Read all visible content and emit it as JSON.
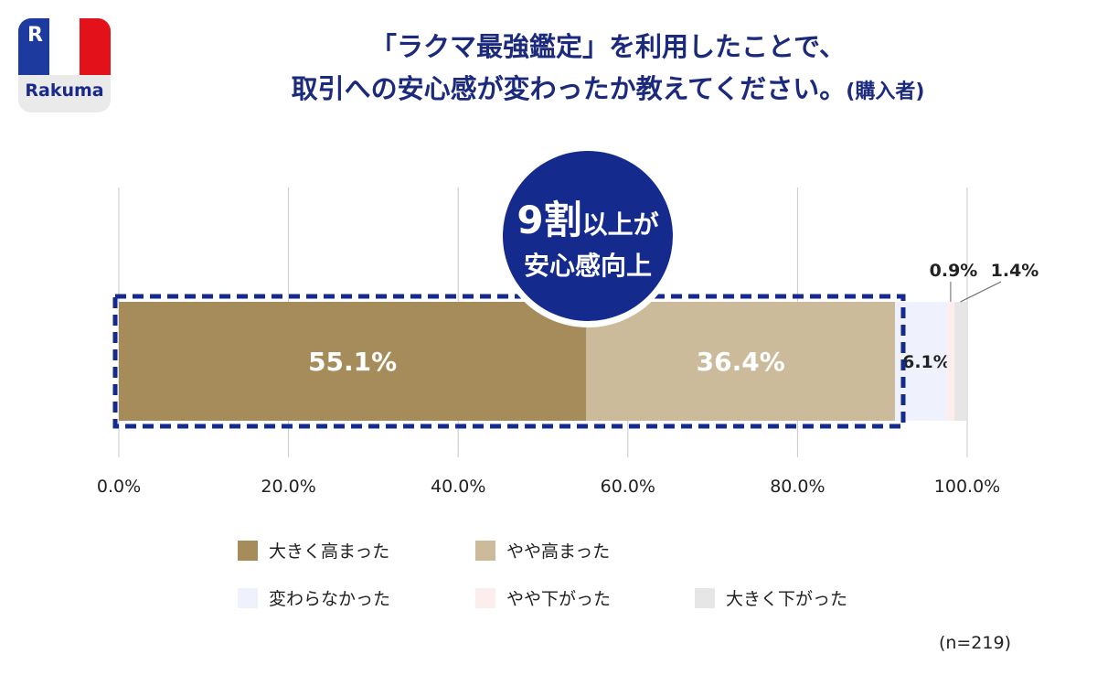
{
  "logo": {
    "text": "Rakuma",
    "colors": [
      "#1d3a9e",
      "#ffffff",
      "#e3121a"
    ]
  },
  "title": {
    "line1": "「ラクマ最強鑑定」を利用したことで、",
    "line2": "取引への安心感が変わったか教えてください。",
    "suffix": "(購入者)"
  },
  "badge": {
    "line1_big": "9割",
    "line1_small": "以上が",
    "line2": "安心感向上",
    "color": "#142a8c"
  },
  "chart_data": {
    "type": "bar",
    "orientation": "horizontal-stacked-100",
    "categories": [
      "大きく高まった",
      "やや高まった",
      "変わらなかった",
      "やや下がった",
      "大きく下がった"
    ],
    "values": [
      55.1,
      36.4,
      6.1,
      0.9,
      1.4
    ],
    "labels": [
      "55.1%",
      "36.4%",
      "6.1%",
      "0.9%",
      "1.4%"
    ],
    "colors": [
      "#a68c5b",
      "#cbbb9b",
      "#eff2fd",
      "#fdeeee",
      "#e6e6e6"
    ],
    "xlim": [
      0,
      100
    ],
    "xticks": [
      "0.0%",
      "20.0%",
      "40.0%",
      "60.0%",
      "80.0%",
      "100.0%"
    ],
    "grid": true,
    "legend_position": "bottom",
    "highlight_color": "#142a8c",
    "note": "(n=219)"
  }
}
